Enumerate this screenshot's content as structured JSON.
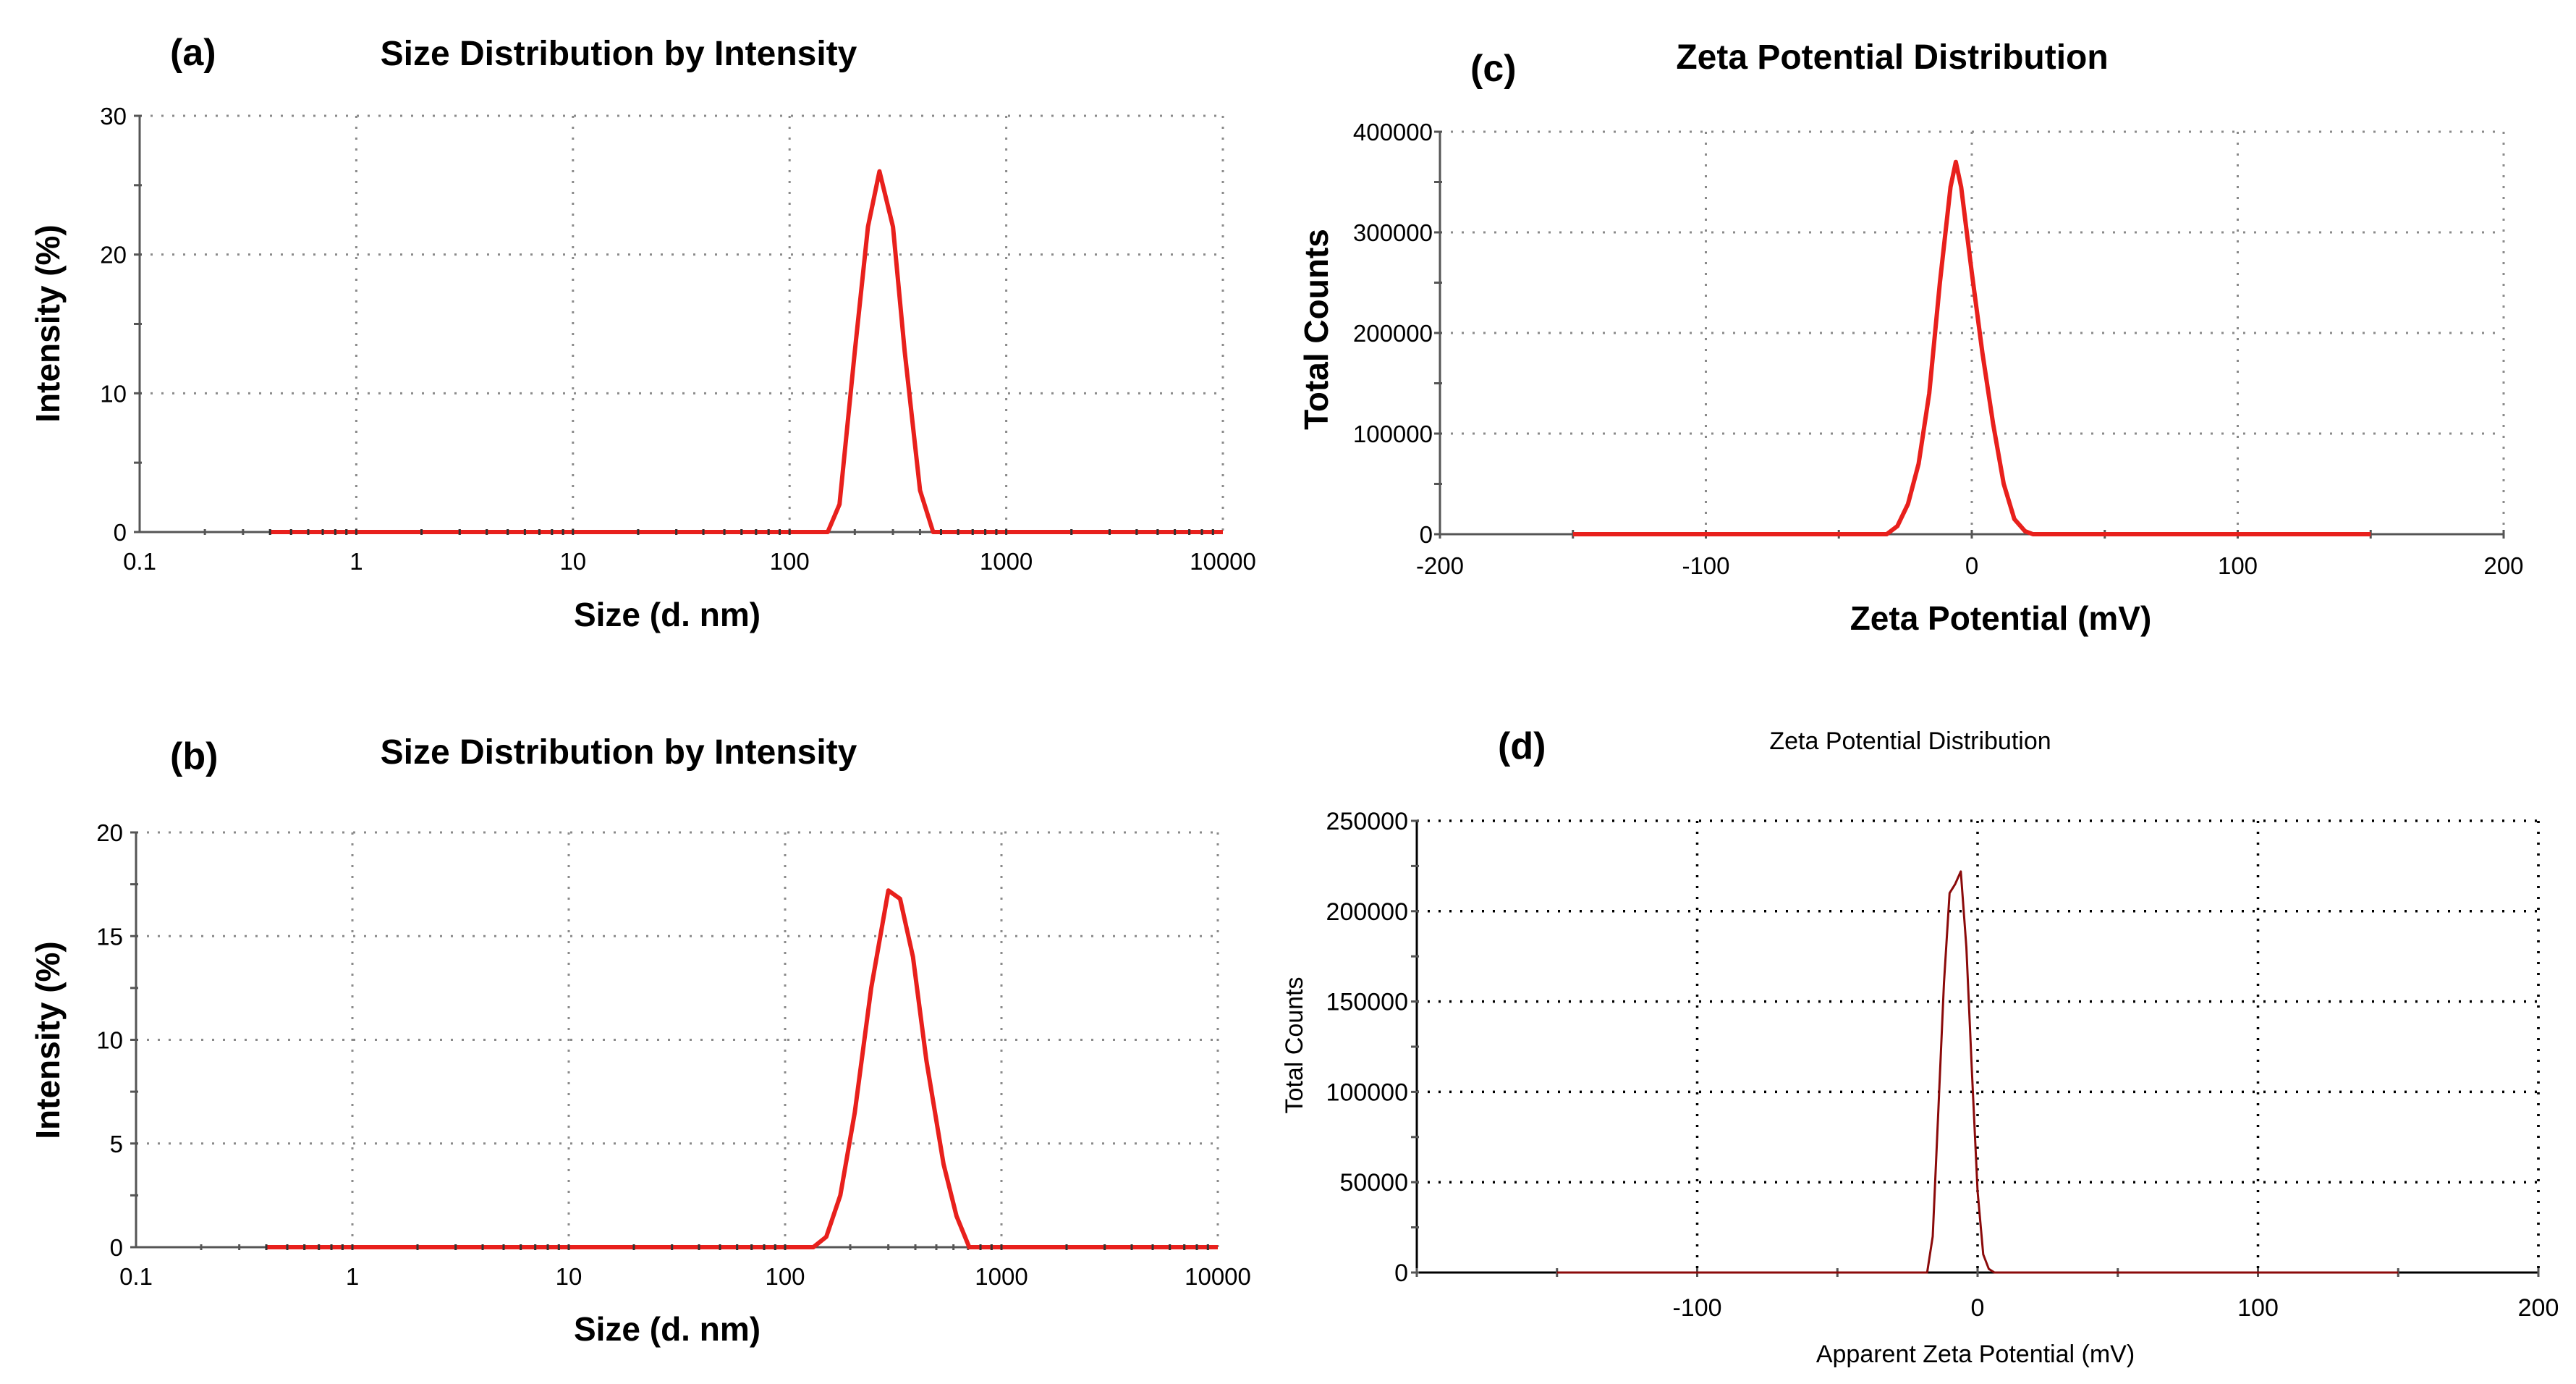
{
  "chart_data": [
    {
      "panel": "(a)",
      "type": "line",
      "title": "Size Distribution by Intensity",
      "xlabel": "Size (d. nm)",
      "ylabel": "Intensity (%)",
      "xscale": "log",
      "xlim": [
        0.1,
        10000
      ],
      "ylim": [
        0,
        30
      ],
      "xticks": [
        0.1,
        1,
        10,
        100,
        1000,
        10000
      ],
      "xtick_labels": [
        "0.1",
        "1",
        "10",
        "100",
        "1000",
        "10000"
      ],
      "yticks": [
        0,
        10,
        20,
        30
      ],
      "ytick_labels": [
        "0",
        "10",
        "20",
        "30"
      ],
      "grid": true,
      "color": "#e8201c",
      "series": [
        {
          "name": "Intensity",
          "x": [
            0.4,
            150,
            170,
            200,
            230,
            260,
            300,
            340,
            400,
            460,
            10000
          ],
          "y": [
            0,
            0,
            2,
            13,
            22,
            26,
            22,
            13,
            3,
            0,
            0
          ]
        }
      ]
    },
    {
      "panel": "(b)",
      "type": "line",
      "title": "Size Distribution by Intensity",
      "xlabel": "Size (d. nm)",
      "ylabel": "Intensity (%)",
      "xscale": "log",
      "xlim": [
        0.1,
        10000
      ],
      "ylim": [
        0,
        20
      ],
      "xticks": [
        0.1,
        1,
        10,
        100,
        1000,
        10000
      ],
      "xtick_labels": [
        "0.1",
        "1",
        "10",
        "100",
        "1000",
        "10000"
      ],
      "yticks": [
        0,
        5,
        10,
        15,
        20
      ],
      "ytick_labels": [
        "0",
        "5",
        "10",
        "15",
        "20"
      ],
      "grid": true,
      "color": "#e8201c",
      "series": [
        {
          "name": "Intensity",
          "x": [
            0.4,
            135,
            155,
            180,
            210,
            250,
            300,
            340,
            390,
            450,
            540,
            620,
            710,
            10000
          ],
          "y": [
            0,
            0,
            0.5,
            2.5,
            6.5,
            12.5,
            17.2,
            16.8,
            14,
            9,
            4,
            1.5,
            0,
            0
          ]
        }
      ]
    },
    {
      "panel": "(c)",
      "type": "line",
      "title": "Zeta Potential Distribution",
      "xlabel": "Zeta Potential (mV)",
      "ylabel": "Total Counts",
      "xlim": [
        -200,
        200
      ],
      "ylim": [
        0,
        400000
      ],
      "xticks": [
        -200,
        -100,
        0,
        100,
        200
      ],
      "xtick_labels": [
        "-200",
        "-100",
        "0",
        "100",
        "200"
      ],
      "yticks": [
        0,
        100000,
        200000,
        300000,
        400000
      ],
      "ytick_labels": [
        "0",
        "100000",
        "200000",
        "300000",
        "400000"
      ],
      "grid": true,
      "color": "#e8201c",
      "series": [
        {
          "name": "Total Counts",
          "x": [
            -150,
            -32,
            -28,
            -24,
            -20,
            -16,
            -12,
            -8,
            -6,
            -4,
            0,
            4,
            8,
            12,
            16,
            20,
            23,
            150
          ],
          "y": [
            0,
            0,
            8000,
            30000,
            70000,
            140000,
            250000,
            345000,
            370000,
            345000,
            260000,
            180000,
            110000,
            50000,
            15000,
            3000,
            0,
            0
          ]
        }
      ]
    },
    {
      "panel": "(d)",
      "type": "line",
      "title": "Zeta Potential Distribution",
      "xlabel": "Apparent Zeta Potential (mV)",
      "ylabel": "Total Counts",
      "xlim": [
        -200,
        200
      ],
      "ylim": [
        0,
        250000
      ],
      "xticks": [
        -100,
        0,
        100,
        200
      ],
      "xtick_labels": [
        "-100",
        "0",
        "100",
        "200"
      ],
      "yticks": [
        0,
        50000,
        100000,
        150000,
        200000,
        250000
      ],
      "ytick_labels": [
        "0",
        "50000",
        "100000",
        "150000",
        "200000",
        "250000"
      ],
      "grid": true,
      "color": "#8b0a0a",
      "series": [
        {
          "name": "Total Counts",
          "x": [
            -150,
            -18,
            -16,
            -14,
            -12,
            -10,
            -8,
            -6,
            -4,
            -2,
            0,
            2,
            4,
            6,
            150
          ],
          "y": [
            0,
            0,
            20000,
            90000,
            160000,
            210000,
            215000,
            222000,
            180000,
            110000,
            45000,
            10000,
            2000,
            0,
            0
          ]
        }
      ]
    }
  ]
}
